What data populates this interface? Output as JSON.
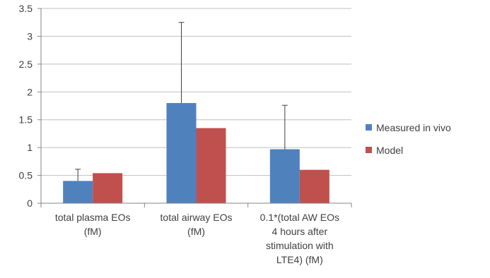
{
  "chart_data": {
    "type": "bar",
    "categories": [
      [
        "total plasma EOs",
        "(fM)"
      ],
      [
        "total airway EOs",
        "(fM)"
      ],
      [
        "0.1*(total AW EOs",
        "4 hours after",
        "stimulation with",
        "LTE4) (fM)"
      ]
    ],
    "series": [
      {
        "name": "Measured in vivo",
        "color": "#4f81bd",
        "values": [
          0.4,
          1.8,
          0.97
        ],
        "error_plus": [
          0.21,
          1.45,
          0.79
        ]
      },
      {
        "name": "Model",
        "color": "#c0504d",
        "values": [
          0.54,
          1.35,
          0.6
        ]
      }
    ],
    "title": "",
    "xlabel": "",
    "ylabel": "",
    "ylim": [
      0,
      3.5
    ],
    "yticks": [
      "0",
      "0.5",
      "1",
      "1.5",
      "2",
      "2.5",
      "3",
      "3.5"
    ],
    "grid": true,
    "legend_position": "right"
  }
}
